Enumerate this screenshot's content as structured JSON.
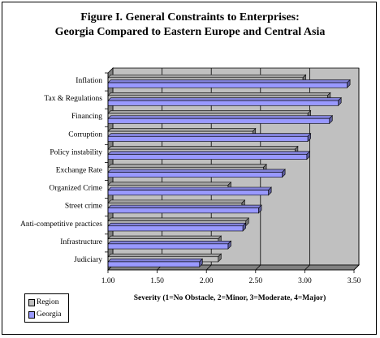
{
  "title_line1": "Figure I. General Constraints to Enterprises:",
  "title_line2": "Georgia Compared to Eastern Europe and Central Asia",
  "chart_data": {
    "type": "bar",
    "orientation": "horizontal",
    "title": "Figure I. General Constraints to Enterprises: Georgia Compared to Eastern Europe and Central Asia",
    "xlabel": "Severity (1=No Obstacle, 2=Minor, 3=Moderate, 4=Major)",
    "ylabel": "",
    "xlim": [
      1.0,
      3.5
    ],
    "xticks": [
      "1.00",
      "1.50",
      "2.00",
      "2.50",
      "3.00",
      "3.50"
    ],
    "grid": true,
    "legend_position": "bottom-left",
    "categories": [
      "Inflation",
      "Tax & Regulations",
      "Financing",
      "Corruption",
      "Policy instability",
      "Exchange Rate",
      "Organized Crime",
      "Street crime",
      "Anti-competitive practices",
      "Infrastructure",
      "Judiciary"
    ],
    "series": [
      {
        "name": "Region",
        "color": "#c0c0c0",
        "values": [
          2.98,
          3.23,
          3.03,
          2.47,
          2.9,
          2.58,
          2.22,
          2.36,
          2.4,
          2.12,
          2.12
        ]
      },
      {
        "name": "Georgia",
        "color": "#9999ff",
        "values": [
          3.43,
          3.34,
          3.25,
          3.03,
          3.02,
          2.77,
          2.63,
          2.53,
          2.37,
          2.22,
          1.93
        ]
      }
    ]
  }
}
